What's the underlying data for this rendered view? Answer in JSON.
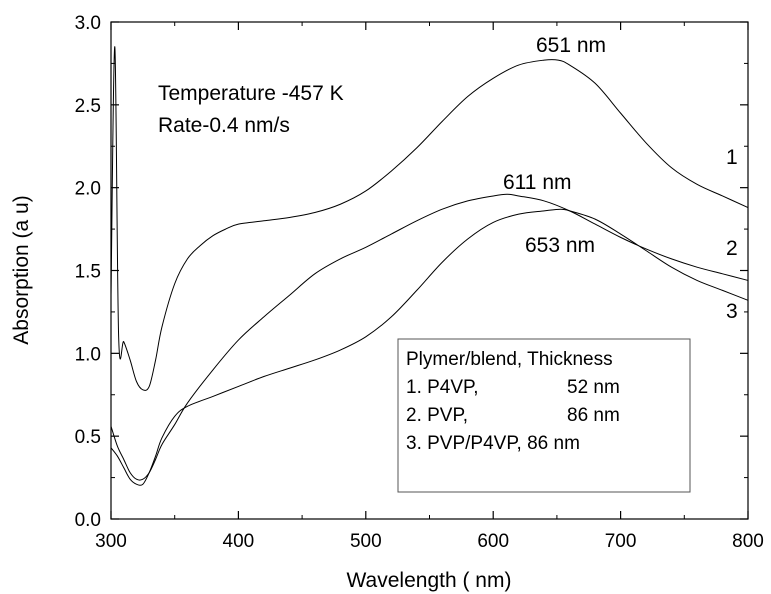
{
  "chart_data": {
    "type": "line",
    "title": "",
    "xlabel": "Wavelength ( nm)",
    "ylabel": "Absorption (a u)",
    "xlim": [
      300,
      800
    ],
    "ylim": [
      0.0,
      3.0
    ],
    "x_ticks": [
      300,
      400,
      500,
      600,
      700,
      800
    ],
    "y_ticks": [
      0.0,
      0.5,
      1.0,
      1.5,
      2.0,
      2.5,
      3.0
    ],
    "x_tick_labels": [
      "300",
      "400",
      "500",
      "600",
      "700",
      "800"
    ],
    "y_tick_labels": [
      "0.0",
      "0.5",
      "1.0",
      "1.5",
      "2.0",
      "2.5",
      "3.0"
    ],
    "grid": false,
    "annotations_text": [
      "Temperature -457 K",
      "Rate-0.4 nm/s"
    ],
    "peak_labels": [
      {
        "text": "651 nm",
        "x": 651,
        "y": 2.77
      },
      {
        "text": "611 nm",
        "x": 611,
        "y": 1.96
      },
      {
        "text": "653 nm",
        "x": 653,
        "y": 1.87
      }
    ],
    "legend": {
      "placement": "bottom-right",
      "header": "Plymer/blend, Thickness",
      "entries": [
        {
          "polymer": "1. P4VP,",
          "thickness": "52 nm"
        },
        {
          "polymer": "2. PVP,",
          "thickness": "86 nm"
        },
        {
          "polymer": "3. PVP/P4VP, 86 nm",
          "thickness": ""
        }
      ]
    },
    "series": [
      {
        "name": "1",
        "x": [
          300,
          303,
          306,
          310,
          315,
          320,
          325,
          330,
          335,
          340,
          350,
          360,
          370,
          380,
          390,
          400,
          420,
          440,
          460,
          480,
          500,
          520,
          540,
          560,
          580,
          600,
          620,
          640,
          651,
          660,
          680,
          700,
          720,
          740,
          760,
          780,
          800
        ],
        "y": [
          1.35,
          2.85,
          1.1,
          1.07,
          0.96,
          0.83,
          0.78,
          0.8,
          0.96,
          1.16,
          1.42,
          1.57,
          1.65,
          1.71,
          1.75,
          1.78,
          1.8,
          1.82,
          1.85,
          1.9,
          1.98,
          2.1,
          2.24,
          2.4,
          2.55,
          2.66,
          2.74,
          2.77,
          2.77,
          2.74,
          2.63,
          2.45,
          2.27,
          2.12,
          2.02,
          1.95,
          1.88
        ]
      },
      {
        "name": "2",
        "x": [
          300,
          305,
          310,
          315,
          320,
          325,
          330,
          335,
          340,
          350,
          360,
          380,
          400,
          420,
          440,
          460,
          480,
          500,
          520,
          540,
          560,
          580,
          600,
          611,
          620,
          640,
          660,
          680,
          700,
          720,
          740,
          760,
          780,
          800
        ],
        "y": [
          0.56,
          0.44,
          0.36,
          0.28,
          0.24,
          0.24,
          0.28,
          0.36,
          0.45,
          0.57,
          0.7,
          0.9,
          1.08,
          1.22,
          1.35,
          1.48,
          1.57,
          1.64,
          1.72,
          1.8,
          1.87,
          1.92,
          1.95,
          1.96,
          1.95,
          1.92,
          1.86,
          1.78,
          1.7,
          1.63,
          1.57,
          1.52,
          1.48,
          1.44
        ]
      },
      {
        "name": "3",
        "x": [
          300,
          305,
          310,
          315,
          320,
          325,
          330,
          335,
          340,
          350,
          360,
          380,
          400,
          420,
          440,
          460,
          480,
          500,
          520,
          540,
          560,
          580,
          600,
          620,
          640,
          653,
          660,
          680,
          700,
          720,
          740,
          760,
          780,
          800
        ],
        "y": [
          0.43,
          0.38,
          0.31,
          0.24,
          0.21,
          0.21,
          0.28,
          0.38,
          0.49,
          0.62,
          0.68,
          0.74,
          0.8,
          0.86,
          0.91,
          0.96,
          1.02,
          1.1,
          1.22,
          1.38,
          1.55,
          1.69,
          1.79,
          1.84,
          1.86,
          1.87,
          1.86,
          1.81,
          1.72,
          1.62,
          1.52,
          1.44,
          1.38,
          1.32
        ]
      }
    ]
  }
}
